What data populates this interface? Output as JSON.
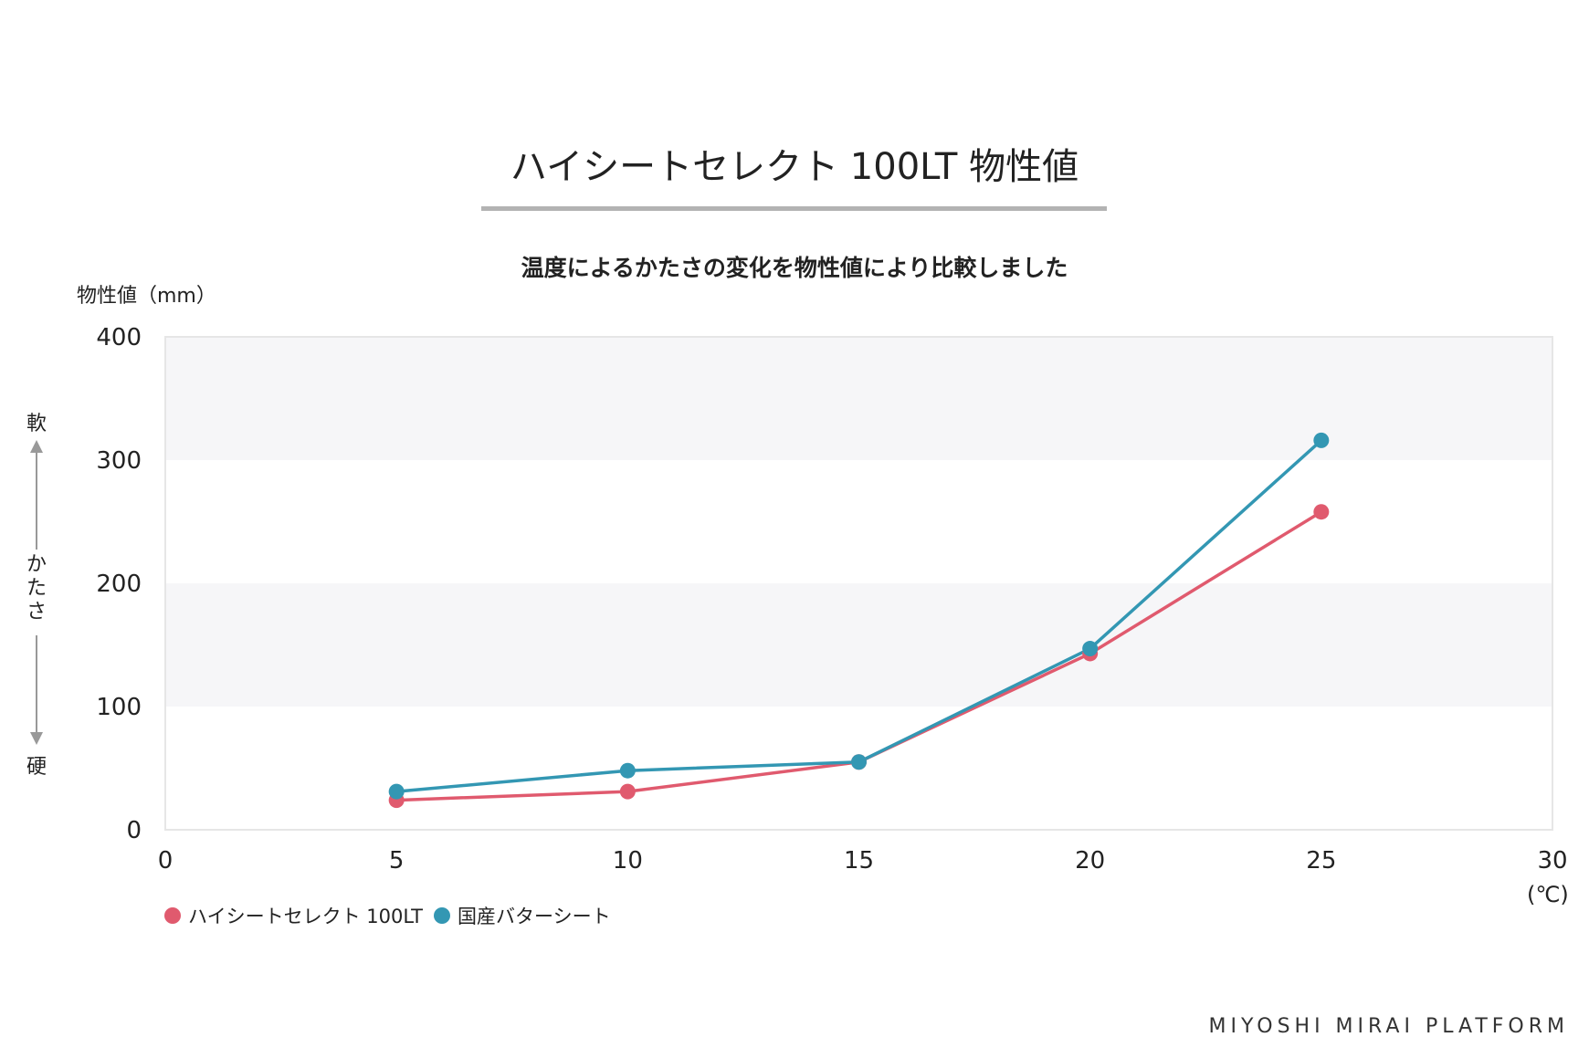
{
  "title": "ハイシートセレクト 100LT 物性値",
  "subtitle": "温度によるかたさの変化を物性値により比較しました",
  "footer": "MIYOSHI MIRAI PLATFORM",
  "side_labels": {
    "top": "軟",
    "middle": "かたさ",
    "bottom": "硬"
  },
  "chart_data": {
    "type": "line",
    "ylabel": "物性値（mm）",
    "xunit": "(℃)",
    "xlim": [
      0,
      30
    ],
    "ylim": [
      0,
      400
    ],
    "xticks": [
      "0",
      "5",
      "10",
      "15",
      "20",
      "25",
      "30"
    ],
    "yticks": [
      "0",
      "100",
      "200",
      "300",
      "400"
    ],
    "x": [
      5,
      10,
      15,
      20,
      25
    ],
    "legend_position": "bottom-left",
    "series": [
      {
        "name": "ハイシートセレクト 100LT",
        "color": "#e05a6e",
        "values": [
          24,
          31,
          55,
          143,
          258
        ]
      },
      {
        "name": "国産バターシート",
        "color": "#3397b3",
        "values": [
          31,
          48,
          55,
          147,
          316
        ]
      }
    ],
    "band_color": "#f6f6f8"
  }
}
